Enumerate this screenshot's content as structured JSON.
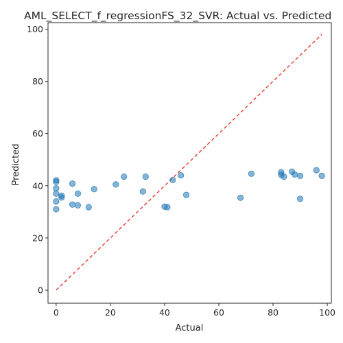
{
  "chart_data": {
    "type": "scatter",
    "title": "AML_SELECT_f_regressionFS_32_SVR: Actual vs. Predicted",
    "xlabel": "Actual",
    "ylabel": "Predicted",
    "xlim": [
      -3,
      101.5
    ],
    "ylim": [
      -5,
      102.5
    ],
    "xticks": [
      0,
      20,
      40,
      60,
      80,
      100
    ],
    "yticks": [
      0,
      20,
      40,
      60,
      80,
      100
    ],
    "grid": false,
    "point_color": "#1f77b4",
    "point_alpha": 0.55,
    "reference_line": {
      "from": [
        0,
        0
      ],
      "to": [
        98,
        98
      ],
      "color": "#e8453c",
      "style": "dashed"
    },
    "points": [
      {
        "x": 0,
        "y": 42.1
      },
      {
        "x": 0,
        "y": 41.5
      },
      {
        "x": 0,
        "y": 39.0
      },
      {
        "x": 0,
        "y": 37.0
      },
      {
        "x": 0,
        "y": 34.0
      },
      {
        "x": 0,
        "y": 31.0
      },
      {
        "x": 2,
        "y": 36.2
      },
      {
        "x": 2,
        "y": 35.5
      },
      {
        "x": 6,
        "y": 40.8
      },
      {
        "x": 6,
        "y": 32.8
      },
      {
        "x": 8,
        "y": 37.0
      },
      {
        "x": 8,
        "y": 32.5
      },
      {
        "x": 12,
        "y": 31.8
      },
      {
        "x": 14,
        "y": 38.7
      },
      {
        "x": 22,
        "y": 40.5
      },
      {
        "x": 25,
        "y": 43.5
      },
      {
        "x": 32,
        "y": 37.8
      },
      {
        "x": 33,
        "y": 43.5
      },
      {
        "x": 40,
        "y": 32.0
      },
      {
        "x": 41,
        "y": 31.8
      },
      {
        "x": 43,
        "y": 42.2
      },
      {
        "x": 46,
        "y": 44.0
      },
      {
        "x": 48,
        "y": 36.5
      },
      {
        "x": 68,
        "y": 35.4
      },
      {
        "x": 72,
        "y": 44.6
      },
      {
        "x": 83,
        "y": 45.2
      },
      {
        "x": 83,
        "y": 44.2
      },
      {
        "x": 84,
        "y": 43.5
      },
      {
        "x": 87,
        "y": 45.4
      },
      {
        "x": 88,
        "y": 44.3
      },
      {
        "x": 90,
        "y": 43.8
      },
      {
        "x": 90,
        "y": 35.0
      },
      {
        "x": 96,
        "y": 46.0
      },
      {
        "x": 98,
        "y": 43.8
      }
    ]
  }
}
